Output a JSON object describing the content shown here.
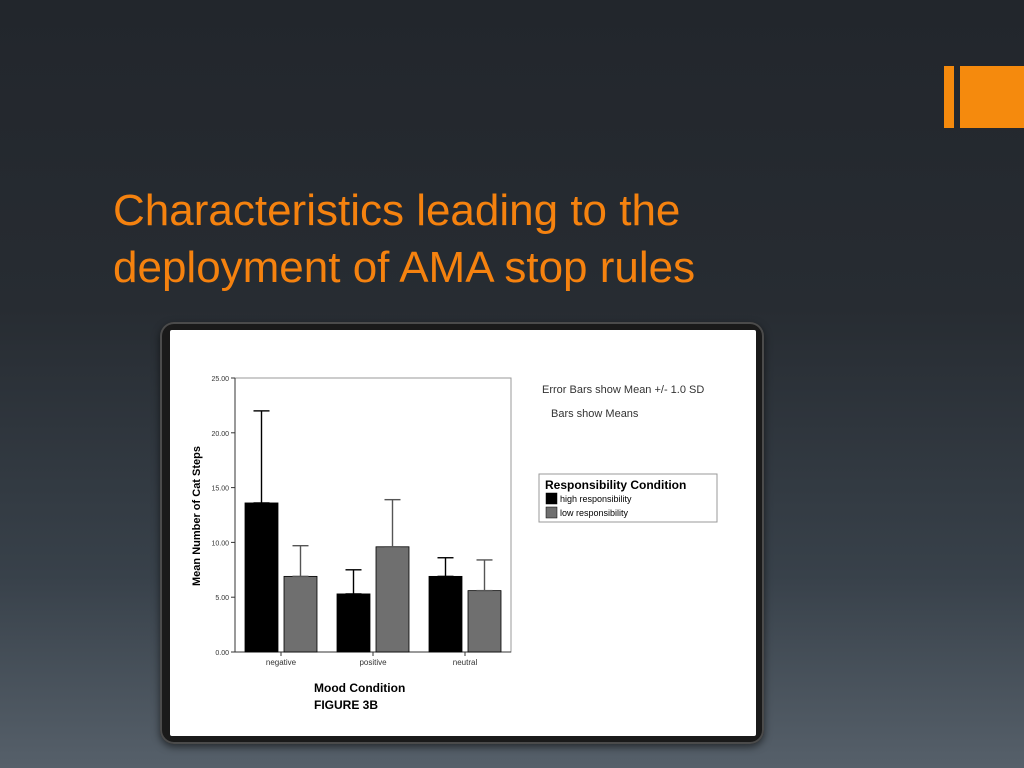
{
  "slide": {
    "title_line1": "Characteristics leading to the",
    "title_line2": "deployment of AMA stop rules",
    "accent_color": "#f58a0d",
    "title_color": "#f5820f"
  },
  "chart_data": {
    "type": "bar",
    "categories": [
      "negative",
      "positive",
      "neutral"
    ],
    "series": [
      {
        "name": "high responsibility",
        "values": [
          13.6,
          5.3,
          6.9
        ],
        "sd_upper": [
          22.0,
          7.5,
          8.6
        ],
        "color": "#000000"
      },
      {
        "name": "low responsibility",
        "values": [
          6.9,
          9.6,
          5.6
        ],
        "sd_upper": [
          9.7,
          13.9,
          8.4
        ],
        "color": "#6f6f6f"
      }
    ],
    "ylim": [
      0,
      25
    ],
    "yticks": [
      "0.00",
      "5.00",
      "10.00",
      "15.00",
      "20.00",
      "25.00"
    ],
    "ylabel": "Mean Number of Cat Steps",
    "xlabel": "Mood Condition",
    "caption": "FIGURE 3B",
    "note_line1": "Error Bars show Mean +/- 1.0 SD",
    "note_line2": "Bars show Means",
    "legend_title": "Responsibility Condition",
    "legend_position": "right"
  }
}
